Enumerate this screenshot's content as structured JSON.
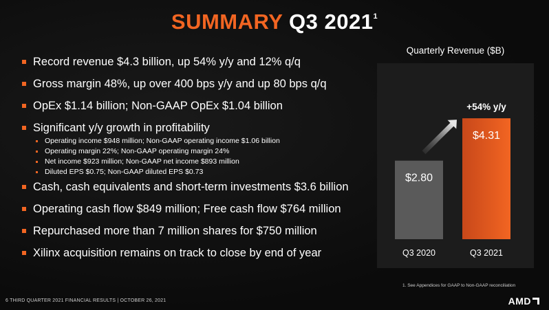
{
  "title": {
    "part1": "SUMMARY",
    "part2": "Q3 2021",
    "sup": "1"
  },
  "bullets": [
    {
      "text": "Record revenue $4.3 billion, up 54% y/y and 12% q/q"
    },
    {
      "text": "Gross margin 48%, up over 400 bps y/y and up 80 bps q/q"
    },
    {
      "text": "OpEx $1.14 billion; Non-GAAP OpEx $1.04 billion"
    },
    {
      "text": "Significant y/y growth in profitability",
      "sub": [
        "Operating income $948 million; Non-GAAP operating income $1.06 billion",
        "Operating margin 22%; Non-GAAP operating margin 24%",
        "Net income $923 million; Non-GAAP net income $893 million",
        "Diluted EPS $0.75; Non-GAAP diluted EPS $0.73"
      ]
    },
    {
      "text": "Cash, cash equivalents and short-term investments $3.6 billion"
    },
    {
      "text": "Operating cash flow $849 million; Free cash flow $764 million"
    },
    {
      "text": "Repurchased more than 7 million shares for $750 million"
    },
    {
      "text": "Xilinx acquisition remains on track to close by end of year"
    }
  ],
  "chart_data": {
    "type": "bar",
    "title": "Quarterly Revenue ($B)",
    "categories": [
      "Q3 2020",
      "Q3 2021"
    ],
    "values": [
      2.8,
      4.31
    ],
    "data_labels": [
      "$2.80",
      "$4.31"
    ],
    "annotation": "+54% y/y",
    "ylim": [
      0,
      4.9
    ],
    "colors": {
      "bar1": "#5a5a5a",
      "bar2": "#f26522",
      "bar2_top": "#c8481a",
      "arrow": "#e6e6e6"
    },
    "grid": false
  },
  "footnote": "1.     See Appendices for GAAP to Non-GAAP reconciliation",
  "footer": "6    THIRD QUARTER 2021 FINANCIAL RESULTS   |   OCTOBER 26, 2021",
  "logo": "AMD"
}
